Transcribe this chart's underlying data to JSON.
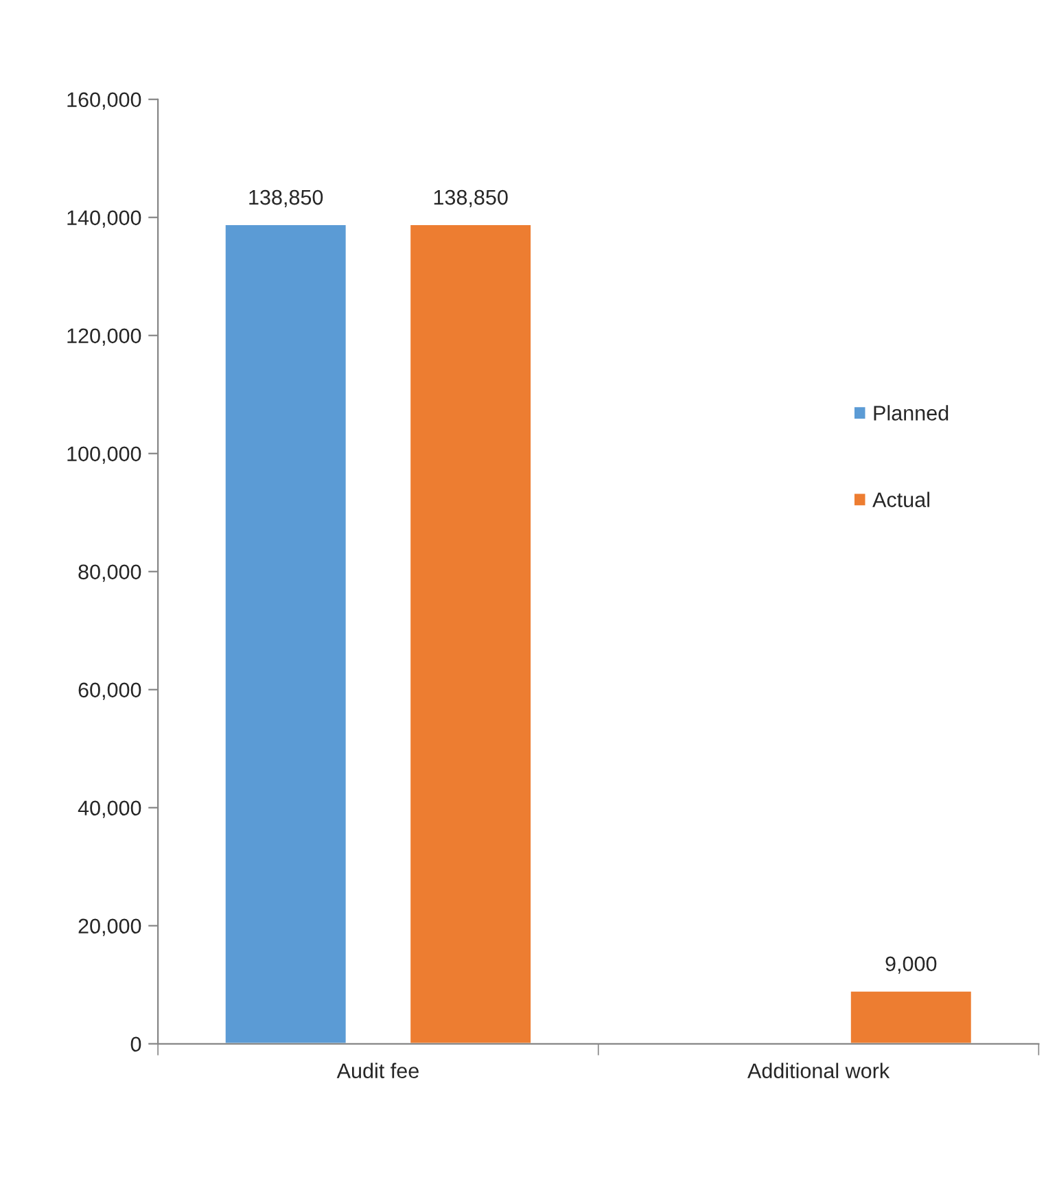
{
  "chart_data": {
    "type": "bar",
    "categories": [
      "Audit fee",
      "Additional work"
    ],
    "series": [
      {
        "name": "Planned",
        "color": "#5b9bd5",
        "values": [
          138850,
          null
        ],
        "value_labels": [
          "138,850",
          null
        ]
      },
      {
        "name": "Actual",
        "color": "#ed7d31",
        "values": [
          138850,
          9000
        ],
        "value_labels": [
          "138,850",
          "9,000"
        ]
      }
    ],
    "ylim": [
      0,
      160000
    ],
    "yticks": [
      0,
      {
        "value": 20000,
        "label": "20,000"
      },
      {
        "value": 40000,
        "label": "40,000"
      },
      {
        "value": 60000,
        "label": "60,000"
      },
      {
        "value": 80000,
        "label": "80,000"
      },
      {
        "value": 100000,
        "label": "100,000"
      },
      {
        "value": 120000,
        "label": "120,000"
      },
      {
        "value": 140000,
        "label": "140,000"
      },
      {
        "value": 160000,
        "label": "160,000"
      }
    ],
    "grid": false,
    "legend": "right"
  }
}
